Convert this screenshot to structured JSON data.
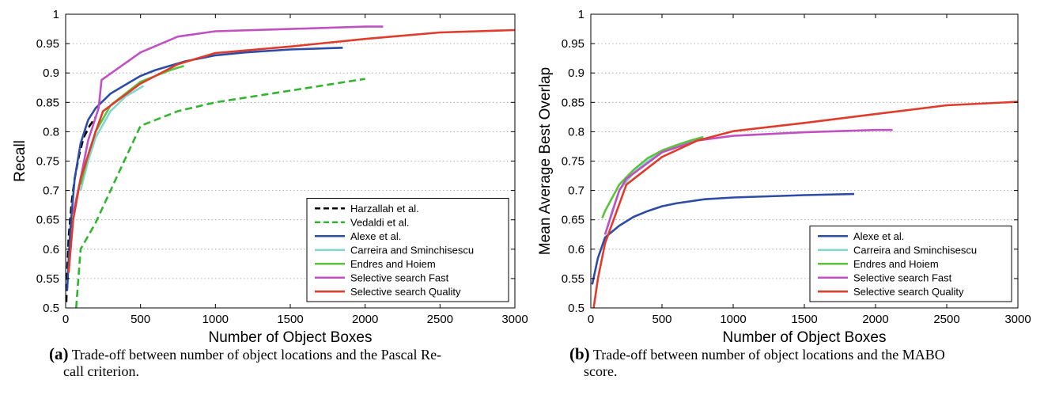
{
  "chart_data": [
    {
      "type": "line",
      "xlabel": "Number of Object Boxes",
      "ylabel": "Recall",
      "xlim": [
        0,
        3000
      ],
      "ylim": [
        0.5,
        1
      ],
      "xticks": [
        0,
        500,
        1000,
        1500,
        2000,
        2500,
        3000
      ],
      "yticks": [
        0.5,
        0.55,
        0.6,
        0.65,
        0.7,
        0.75,
        0.8,
        0.85,
        0.9,
        0.95,
        1
      ],
      "ytick_labels": [
        "0.5",
        "0.55",
        "0.6",
        "0.65",
        "0.7",
        "0.75",
        "0.8",
        "0.85",
        "0.9",
        "0.95",
        "1"
      ],
      "grid": "horizontal-dotted",
      "legend_position": "bottom-right",
      "series": [
        {
          "name": "Harzallah et al.",
          "color": "#000000",
          "dash": "dashed",
          "points": [
            [
              5,
              0.51
            ],
            [
              10,
              0.56
            ],
            [
              20,
              0.62
            ],
            [
              40,
              0.68
            ],
            [
              60,
              0.72
            ],
            [
              90,
              0.76
            ],
            [
              120,
              0.79
            ],
            [
              160,
              0.81
            ],
            [
              200,
              0.825
            ]
          ]
        },
        {
          "name": "Vedaldi et al.",
          "color": "#2fb52f",
          "dash": "dashed",
          "points": [
            [
              70,
              0.5
            ],
            [
              100,
              0.6
            ],
            [
              200,
              0.645
            ],
            [
              300,
              0.7
            ],
            [
              400,
              0.755
            ],
            [
              500,
              0.81
            ],
            [
              750,
              0.835
            ],
            [
              1000,
              0.85
            ],
            [
              1500,
              0.87
            ],
            [
              2000,
              0.89
            ]
          ]
        },
        {
          "name": "Alexe et al.",
          "color": "#2c4ca6",
          "dash": "solid",
          "points": [
            [
              10,
              0.53
            ],
            [
              30,
              0.63
            ],
            [
              60,
              0.72
            ],
            [
              100,
              0.78
            ],
            [
              150,
              0.82
            ],
            [
              200,
              0.84
            ],
            [
              300,
              0.865
            ],
            [
              400,
              0.88
            ],
            [
              500,
              0.895
            ],
            [
              600,
              0.905
            ],
            [
              800,
              0.92
            ],
            [
              1000,
              0.93
            ],
            [
              1200,
              0.935
            ],
            [
              1500,
              0.94
            ],
            [
              1850,
              0.943
            ]
          ]
        },
        {
          "name": "Carreira and Sminchisescu",
          "color": "#7fd7cf",
          "dash": "solid",
          "points": [
            [
              100,
              0.7
            ],
            [
              150,
              0.75
            ],
            [
              200,
              0.79
            ],
            [
              300,
              0.835
            ],
            [
              400,
              0.86
            ],
            [
              500,
              0.875
            ],
            [
              520,
              0.878
            ]
          ]
        },
        {
          "name": "Endres and Hoiem",
          "color": "#5bc23b",
          "dash": "solid",
          "points": [
            [
              100,
              0.71
            ],
            [
              150,
              0.76
            ],
            [
              200,
              0.8
            ],
            [
              300,
              0.845
            ],
            [
              400,
              0.865
            ],
            [
              500,
              0.885
            ],
            [
              600,
              0.895
            ],
            [
              700,
              0.905
            ],
            [
              790,
              0.912
            ]
          ]
        },
        {
          "name": "Selective search Fast",
          "color": "#c150c2",
          "dash": "solid",
          "points": [
            [
              50,
              0.66
            ],
            [
              100,
              0.72
            ],
            [
              150,
              0.785
            ],
            [
              220,
              0.84
            ],
            [
              240,
              0.888
            ],
            [
              500,
              0.935
            ],
            [
              750,
              0.962
            ],
            [
              1000,
              0.971
            ],
            [
              1500,
              0.975
            ],
            [
              2000,
              0.979
            ],
            [
              2120,
              0.979
            ]
          ]
        },
        {
          "name": "Selective search Quality",
          "color": "#e03b2b",
          "dash": "solid",
          "points": [
            [
              20,
              0.56
            ],
            [
              50,
              0.65
            ],
            [
              100,
              0.72
            ],
            [
              150,
              0.76
            ],
            [
              200,
              0.8
            ],
            [
              250,
              0.835
            ],
            [
              500,
              0.882
            ],
            [
              750,
              0.915
            ],
            [
              1000,
              0.934
            ],
            [
              1500,
              0.945
            ],
            [
              2000,
              0.958
            ],
            [
              2500,
              0.969
            ],
            [
              3000,
              0.973
            ]
          ]
        }
      ]
    },
    {
      "type": "line",
      "xlabel": "Number of Object Boxes",
      "ylabel": "Mean Average Best Overlap",
      "xlim": [
        0,
        3000
      ],
      "ylim": [
        0.5,
        1
      ],
      "xticks": [
        0,
        500,
        1000,
        1500,
        2000,
        2500,
        3000
      ],
      "yticks": [
        0.5,
        0.55,
        0.6,
        0.65,
        0.7,
        0.75,
        0.8,
        0.85,
        0.9,
        0.95,
        1
      ],
      "ytick_labels": [
        "0.5",
        "0.55",
        "0.6",
        "0.65",
        "0.7",
        "0.75",
        "0.8",
        "0.85",
        "0.9",
        "0.95",
        "1"
      ],
      "grid": "horizontal-dotted",
      "legend_position": "bottom-right",
      "series": [
        {
          "name": "Alexe et al.",
          "color": "#2c4ca6",
          "dash": "solid",
          "points": [
            [
              10,
              0.54
            ],
            [
              50,
              0.585
            ],
            [
              100,
              0.62
            ],
            [
              200,
              0.64
            ],
            [
              300,
              0.655
            ],
            [
              400,
              0.665
            ],
            [
              500,
              0.673
            ],
            [
              600,
              0.678
            ],
            [
              800,
              0.685
            ],
            [
              1000,
              0.688
            ],
            [
              1500,
              0.692
            ],
            [
              1850,
              0.694
            ]
          ]
        },
        {
          "name": "Carreira and Sminchisescu",
          "color": "#7fd7cf",
          "dash": "solid",
          "points": [
            [
              100,
              0.625
            ],
            [
              150,
              0.665
            ],
            [
              200,
              0.7
            ],
            [
              300,
              0.73
            ],
            [
              400,
              0.75
            ],
            [
              500,
              0.765
            ],
            [
              600,
              0.775
            ],
            [
              700,
              0.782
            ],
            [
              800,
              0.788
            ]
          ]
        },
        {
          "name": "Endres and Hoiem",
          "color": "#5bc23b",
          "dash": "solid",
          "points": [
            [
              80,
              0.653
            ],
            [
              100,
              0.665
            ],
            [
              200,
              0.71
            ],
            [
              300,
              0.735
            ],
            [
              400,
              0.755
            ],
            [
              500,
              0.768
            ],
            [
              600,
              0.777
            ],
            [
              700,
              0.785
            ],
            [
              790,
              0.791
            ]
          ]
        },
        {
          "name": "Selective search Fast",
          "color": "#c150c2",
          "dash": "solid",
          "points": [
            [
              100,
              0.625
            ],
            [
              200,
              0.7
            ],
            [
              250,
              0.72
            ],
            [
              500,
              0.765
            ],
            [
              750,
              0.785
            ],
            [
              1000,
              0.793
            ],
            [
              1500,
              0.799
            ],
            [
              2000,
              0.803
            ],
            [
              2120,
              0.803
            ]
          ]
        },
        {
          "name": "Selective search Quality",
          "color": "#e03b2b",
          "dash": "solid",
          "points": [
            [
              20,
              0.5
            ],
            [
              50,
              0.55
            ],
            [
              100,
              0.61
            ],
            [
              250,
              0.71
            ],
            [
              500,
              0.757
            ],
            [
              750,
              0.785
            ],
            [
              1000,
              0.801
            ],
            [
              1500,
              0.815
            ],
            [
              2000,
              0.83
            ],
            [
              2500,
              0.845
            ],
            [
              3000,
              0.851
            ]
          ]
        }
      ]
    }
  ],
  "captions": {
    "a": {
      "tag": "(a)",
      "text": "Trade-off between number of object locations and the Pascal Re-",
      "text2": "call criterion."
    },
    "b": {
      "tag": "(b)",
      "text": "Trade-off between number of object locations and the MABO",
      "text2": "score."
    }
  }
}
